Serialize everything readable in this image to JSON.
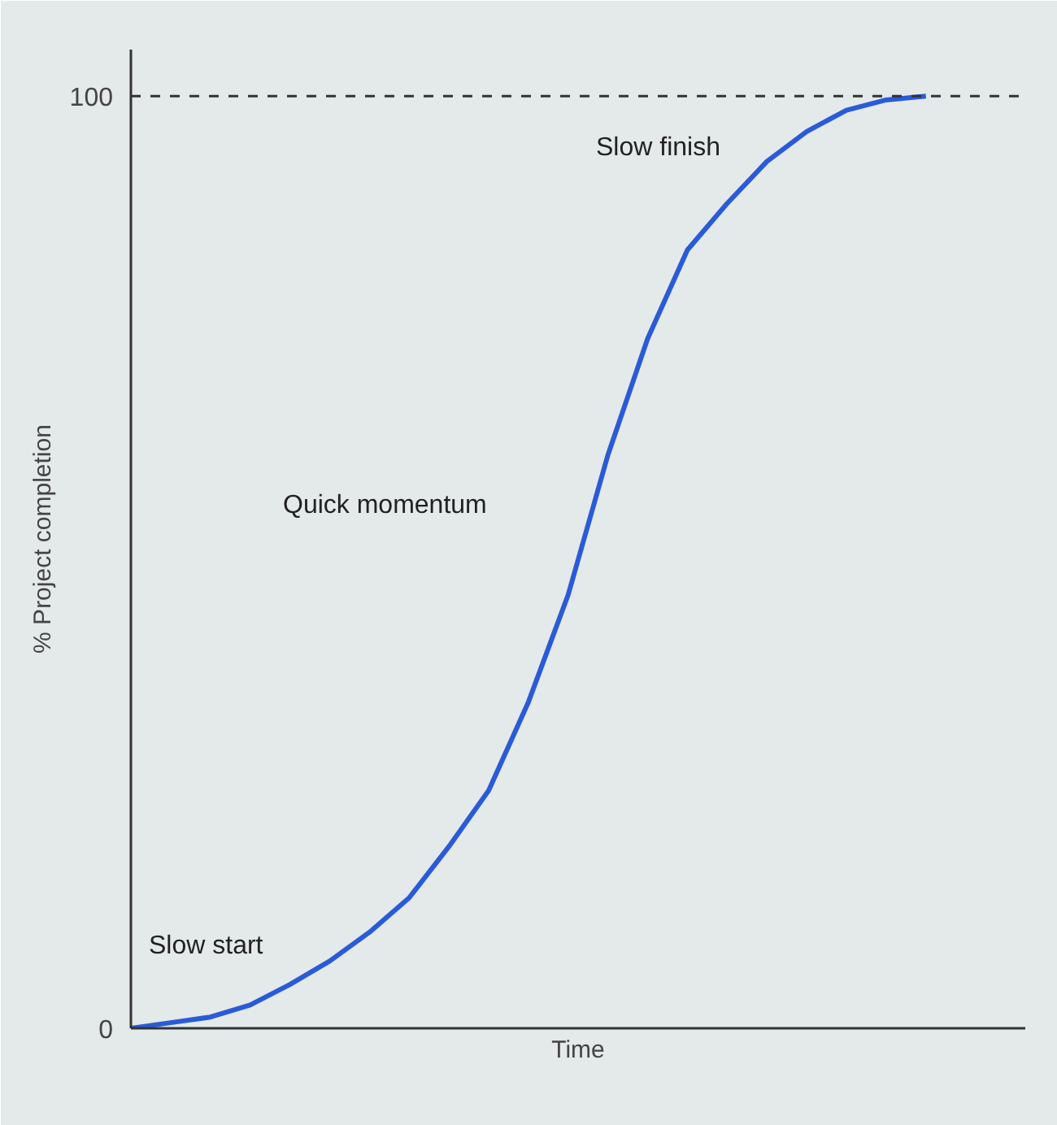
{
  "chart_data": {
    "type": "line",
    "xlabel": "Time",
    "ylabel": "% Project completion",
    "categories": [
      null,
      null,
      null,
      null,
      null,
      null,
      null,
      null,
      null,
      null,
      null,
      null,
      null,
      null,
      null,
      null,
      null,
      null,
      null,
      null,
      null,
      null,
      null
    ],
    "series": [
      {
        "color": "#2a5bd7",
        "values": [
          0,
          0.6,
          1.2,
          2.5,
          4.7,
          7.2,
          10.3,
          14,
          19.5,
          25.5,
          35,
          46.5,
          61.5,
          74,
          83.5,
          88.5,
          93,
          96.2,
          98.5,
          99.6,
          100,
          null,
          null
        ]
      }
    ],
    "ylim": [
      0,
      105
    ],
    "yticks": [
      0,
      100
    ],
    "marker": "none",
    "line_style": "solid",
    "tick_labels": "y",
    "ref_lines": [
      {
        "axis": "y",
        "value": 100,
        "label": null,
        "color": "#333333",
        "line_style": "dashed"
      }
    ],
    "annotations": [
      "Slow start",
      "Quick momentum",
      "Slow finish"
    ]
  }
}
